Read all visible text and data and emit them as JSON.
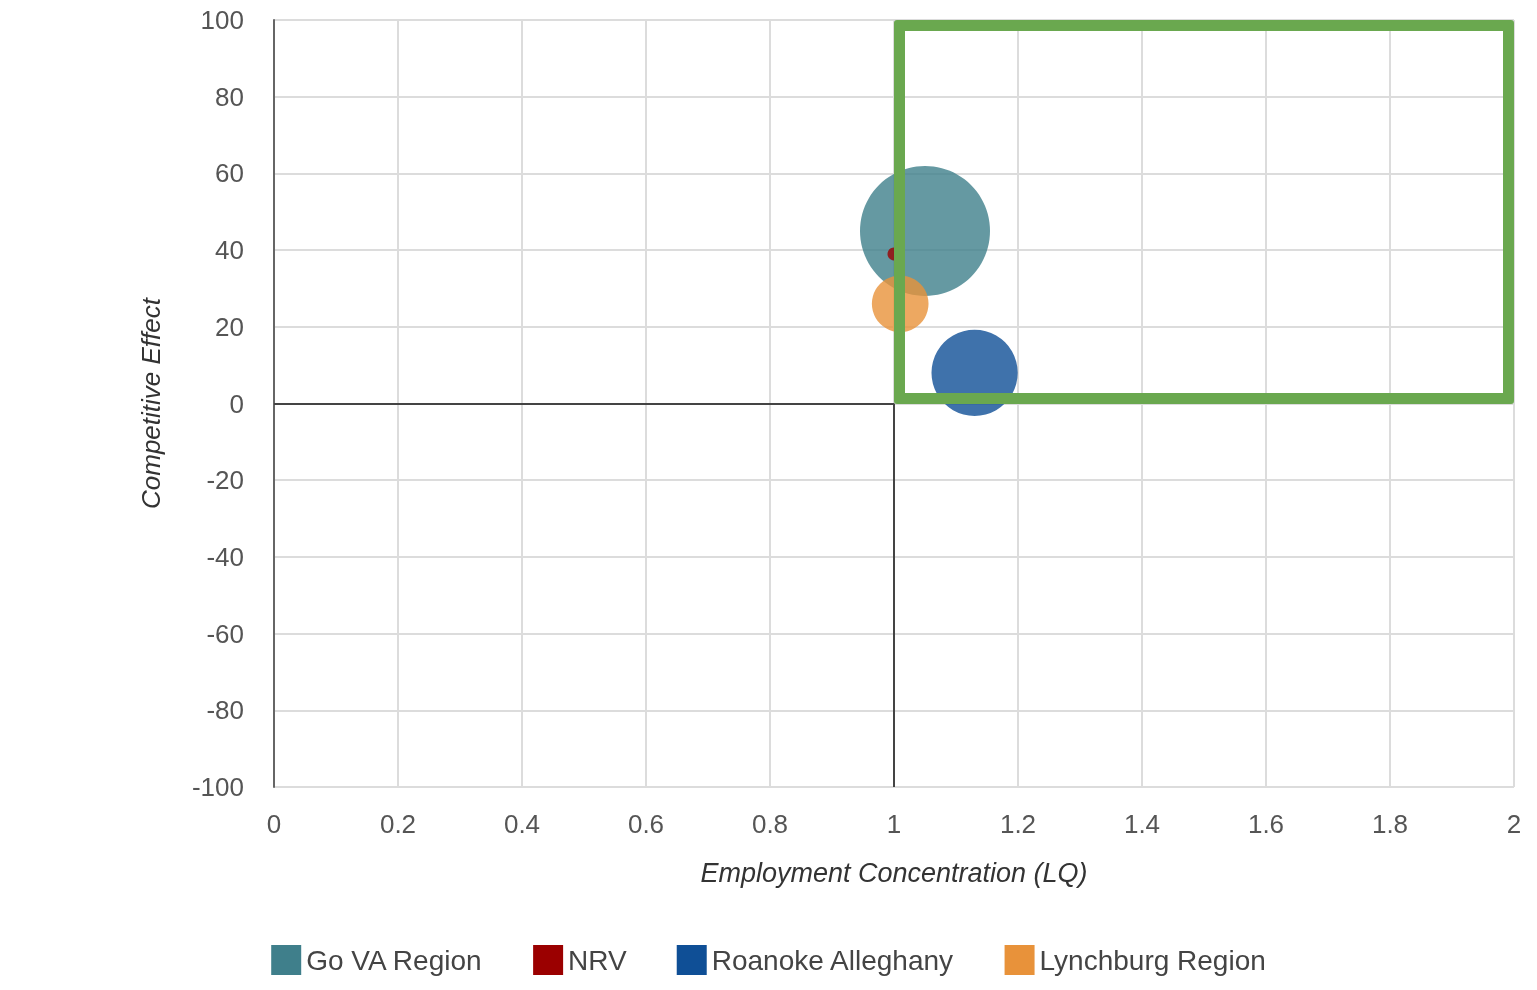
{
  "chart_data": {
    "type": "bubble",
    "xlabel": "Employment Concentration (LQ)",
    "ylabel": "Competitive Effect",
    "xlim": [
      0,
      2
    ],
    "xticks": [
      0,
      0.2,
      0.4,
      0.6,
      0.8,
      1,
      1.2,
      1.4,
      1.6,
      1.8,
      2
    ],
    "ylim": [
      -100,
      100
    ],
    "yticks": [
      -100,
      -80,
      -60,
      -40,
      -20,
      0,
      20,
      40,
      60,
      80,
      100
    ],
    "grid": true,
    "legend": "bottom",
    "marker": "circle",
    "ref_lines": [
      {
        "axis": "y",
        "value": 0,
        "color": "#444444"
      },
      {
        "axis": "x",
        "value": 1,
        "color": "#444444"
      }
    ],
    "series": [
      {
        "name": "Go VA Region",
        "color": "#3f7f8b",
        "x": [
          1.05
        ],
        "values": [
          45
        ],
        "sizes": [
          1
        ]
      },
      {
        "name": "NRV",
        "color": "#9b0000",
        "x": [
          1.0
        ],
        "values": [
          39
        ],
        "sizes": [
          0.01
        ]
      },
      {
        "name": "Roanoke Alleghany",
        "color": "#0f4f96",
        "x": [
          1.13
        ],
        "values": [
          8
        ],
        "sizes": [
          0.44
        ]
      },
      {
        "name": "Lynchburg Region",
        "color": "#e8923a",
        "x": [
          1.01
        ],
        "values": [
          26
        ],
        "sizes": [
          0.19
        ]
      }
    ]
  }
}
